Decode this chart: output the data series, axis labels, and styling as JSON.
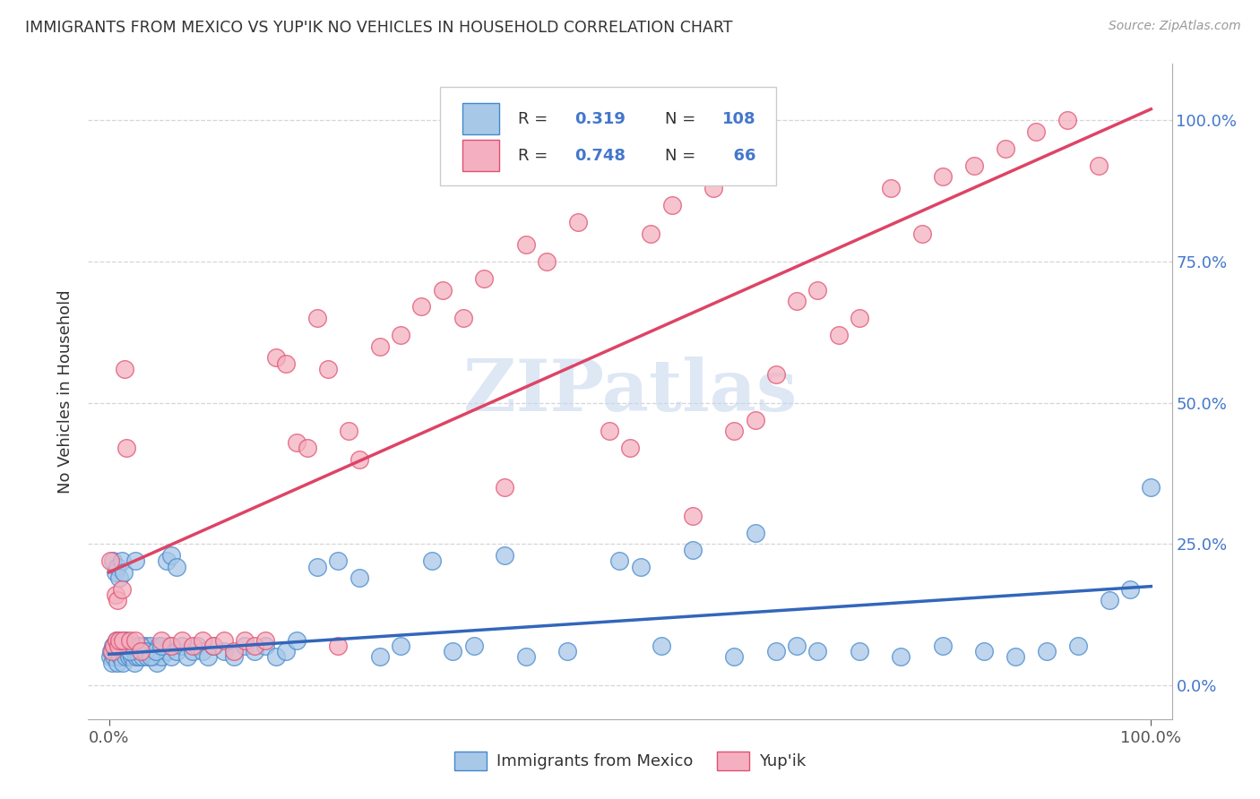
{
  "title": "IMMIGRANTS FROM MEXICO VS YUP'IK NO VEHICLES IN HOUSEHOLD CORRELATION CHART",
  "source": "Source: ZipAtlas.com",
  "ylabel": "No Vehicles in Household",
  "ytick_labels": [
    "0.0%",
    "25.0%",
    "50.0%",
    "75.0%",
    "100.0%"
  ],
  "ytick_values": [
    0.0,
    0.25,
    0.5,
    0.75,
    1.0
  ],
  "watermark_text": "ZIPatlas",
  "legend_label1": "Immigrants from Mexico",
  "legend_label2": "Yup'ik",
  "R1": 0.319,
  "N1": 108,
  "R2": 0.748,
  "N2": 66,
  "blue_fill": "#a8c8e8",
  "blue_edge": "#4488cc",
  "pink_fill": "#f4b0c0",
  "pink_edge": "#e05070",
  "blue_line_color": "#3366bb",
  "pink_line_color": "#dd4466",
  "background_color": "#ffffff",
  "grid_color": "#cccccc",
  "title_color": "#333333",
  "source_color": "#999999",
  "ylabel_color": "#333333",
  "tick_label_color": "#4477cc",
  "legend_text_color": "#333333",
  "blue_slope": 0.12,
  "blue_intercept": 0.055,
  "pink_slope": 0.82,
  "pink_intercept": 0.2,
  "blue_x": [
    0.001,
    0.002,
    0.003,
    0.004,
    0.005,
    0.006,
    0.007,
    0.008,
    0.009,
    0.01,
    0.011,
    0.012,
    0.013,
    0.014,
    0.015,
    0.016,
    0.017,
    0.018,
    0.019,
    0.02,
    0.021,
    0.022,
    0.023,
    0.024,
    0.025,
    0.026,
    0.027,
    0.028,
    0.029,
    0.03,
    0.032,
    0.034,
    0.035,
    0.036,
    0.038,
    0.04,
    0.042,
    0.044,
    0.046,
    0.048,
    0.05,
    0.055,
    0.058,
    0.06,
    0.065,
    0.07,
    0.075,
    0.08,
    0.085,
    0.09,
    0.095,
    0.1,
    0.11,
    0.12,
    0.13,
    0.14,
    0.15,
    0.16,
    0.17,
    0.18,
    0.2,
    0.22,
    0.24,
    0.26,
    0.28,
    0.31,
    0.33,
    0.35,
    0.38,
    0.4,
    0.44,
    0.49,
    0.51,
    0.53,
    0.56,
    0.6,
    0.62,
    0.64,
    0.66,
    0.68,
    0.72,
    0.76,
    0.8,
    0.84,
    0.87,
    0.9,
    0.93,
    0.96,
    0.98,
    1.0,
    0.004,
    0.006,
    0.008,
    0.01,
    0.012,
    0.014,
    0.016,
    0.018,
    0.02,
    0.025,
    0.03,
    0.035,
    0.04,
    0.045,
    0.05,
    0.055,
    0.06,
    0.065
  ],
  "blue_y": [
    0.05,
    0.06,
    0.04,
    0.07,
    0.05,
    0.06,
    0.08,
    0.04,
    0.06,
    0.07,
    0.05,
    0.06,
    0.04,
    0.08,
    0.06,
    0.05,
    0.07,
    0.06,
    0.05,
    0.07,
    0.06,
    0.05,
    0.07,
    0.04,
    0.06,
    0.05,
    0.07,
    0.06,
    0.05,
    0.06,
    0.05,
    0.06,
    0.07,
    0.05,
    0.06,
    0.07,
    0.05,
    0.06,
    0.04,
    0.07,
    0.05,
    0.06,
    0.07,
    0.05,
    0.06,
    0.07,
    0.05,
    0.06,
    0.07,
    0.06,
    0.05,
    0.07,
    0.06,
    0.05,
    0.07,
    0.06,
    0.07,
    0.05,
    0.06,
    0.08,
    0.21,
    0.22,
    0.19,
    0.05,
    0.07,
    0.22,
    0.06,
    0.07,
    0.23,
    0.05,
    0.06,
    0.22,
    0.21,
    0.07,
    0.24,
    0.05,
    0.27,
    0.06,
    0.07,
    0.06,
    0.06,
    0.05,
    0.07,
    0.06,
    0.05,
    0.06,
    0.07,
    0.15,
    0.17,
    0.35,
    0.22,
    0.2,
    0.21,
    0.19,
    0.22,
    0.2,
    0.08,
    0.07,
    0.06,
    0.22,
    0.07,
    0.06,
    0.05,
    0.06,
    0.07,
    0.22,
    0.23,
    0.21
  ],
  "pink_x": [
    0.001,
    0.003,
    0.005,
    0.006,
    0.007,
    0.008,
    0.009,
    0.01,
    0.012,
    0.013,
    0.015,
    0.017,
    0.02,
    0.025,
    0.03,
    0.05,
    0.06,
    0.07,
    0.08,
    0.09,
    0.1,
    0.11,
    0.12,
    0.13,
    0.14,
    0.15,
    0.16,
    0.17,
    0.18,
    0.19,
    0.2,
    0.21,
    0.22,
    0.23,
    0.24,
    0.26,
    0.28,
    0.3,
    0.32,
    0.34,
    0.36,
    0.38,
    0.4,
    0.42,
    0.45,
    0.48,
    0.5,
    0.52,
    0.54,
    0.56,
    0.58,
    0.6,
    0.62,
    0.64,
    0.66,
    0.68,
    0.7,
    0.72,
    0.75,
    0.78,
    0.8,
    0.83,
    0.86,
    0.89,
    0.92,
    0.95
  ],
  "pink_y": [
    0.22,
    0.06,
    0.07,
    0.16,
    0.08,
    0.15,
    0.07,
    0.08,
    0.17,
    0.08,
    0.56,
    0.42,
    0.08,
    0.08,
    0.06,
    0.08,
    0.07,
    0.08,
    0.07,
    0.08,
    0.07,
    0.08,
    0.06,
    0.08,
    0.07,
    0.08,
    0.58,
    0.57,
    0.43,
    0.42,
    0.65,
    0.56,
    0.07,
    0.45,
    0.4,
    0.6,
    0.62,
    0.67,
    0.7,
    0.65,
    0.72,
    0.35,
    0.78,
    0.75,
    0.82,
    0.45,
    0.42,
    0.8,
    0.85,
    0.3,
    0.88,
    0.45,
    0.47,
    0.55,
    0.68,
    0.7,
    0.62,
    0.65,
    0.88,
    0.8,
    0.9,
    0.92,
    0.95,
    0.98,
    1.0,
    0.92
  ]
}
